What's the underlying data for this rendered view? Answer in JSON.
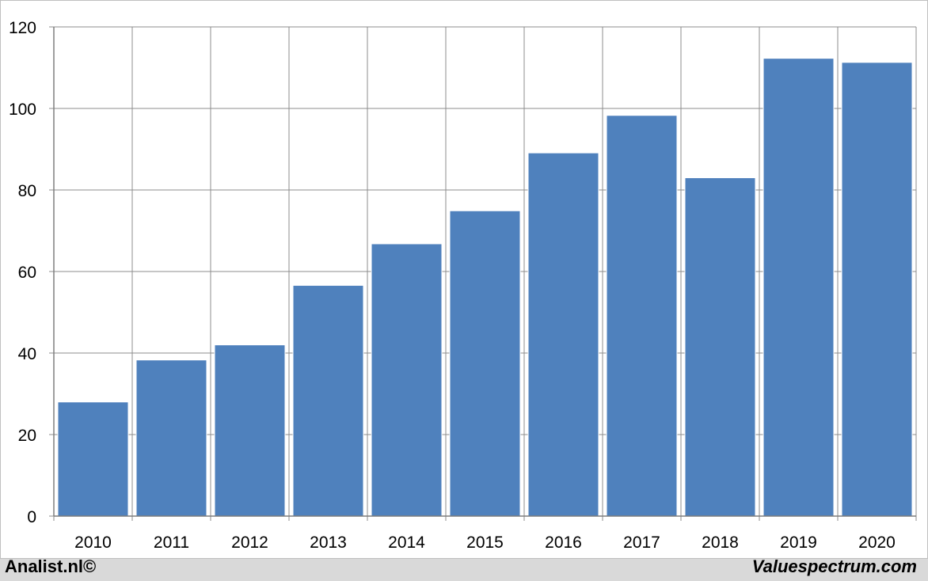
{
  "chart_data": {
    "type": "bar",
    "categories": [
      "2010",
      "2011",
      "2012",
      "2013",
      "2014",
      "2015",
      "2016",
      "2017",
      "2018",
      "2019",
      "2020"
    ],
    "values": [
      28,
      38.3,
      42,
      56.6,
      66.8,
      74.9,
      89.1,
      98.3,
      83,
      112.3,
      111.3
    ],
    "title": "",
    "xlabel": "",
    "ylabel": "",
    "ylim": [
      0,
      120
    ],
    "yticks": [
      0,
      20,
      40,
      60,
      80,
      100,
      120
    ],
    "grid": true,
    "bar_color": "#4f81bd"
  },
  "footer": {
    "left": "Analist.nl©",
    "right": "Valuespectrum.com"
  }
}
